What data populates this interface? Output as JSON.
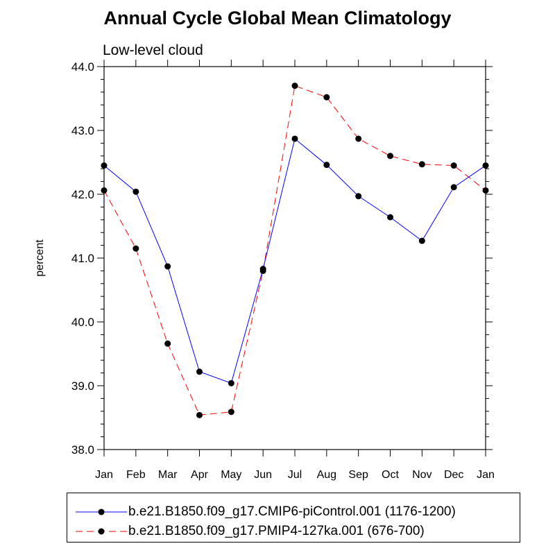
{
  "chart_data": {
    "type": "line",
    "title": "Annual Cycle Global Mean Climatology",
    "subtitle": "Low-level cloud",
    "xlabel": "",
    "ylabel": "percent",
    "categories": [
      "Jan",
      "Feb",
      "Mar",
      "Apr",
      "May",
      "Jun",
      "Jul",
      "Aug",
      "Sep",
      "Oct",
      "Nov",
      "Dec",
      "Jan"
    ],
    "ylim": [
      38.0,
      44.0
    ],
    "yticks": [
      "38.0",
      "39.0",
      "40.0",
      "41.0",
      "42.0",
      "43.0",
      "44.0"
    ],
    "grid": false,
    "legend_position": "bottom",
    "series": [
      {
        "name": "b.e21.B1850.f09_g17.CMIP6-piControl.001 (1176-1200)",
        "color": "#0000ff",
        "line_style": "solid",
        "marker": "filled-circle",
        "values": [
          42.45,
          42.04,
          40.87,
          39.22,
          39.04,
          40.83,
          42.87,
          42.46,
          41.97,
          41.64,
          41.27,
          42.11,
          42.45
        ]
      },
      {
        "name": "b.e21.B1850.f09_g17.PMIP4-127ka.001 (676-700)",
        "color": "#ff0000",
        "line_style": "dashed",
        "marker": "filled-circle",
        "values": [
          42.06,
          41.15,
          39.66,
          38.54,
          38.59,
          40.8,
          43.7,
          43.52,
          42.87,
          42.6,
          42.47,
          42.45,
          42.06
        ]
      }
    ]
  }
}
